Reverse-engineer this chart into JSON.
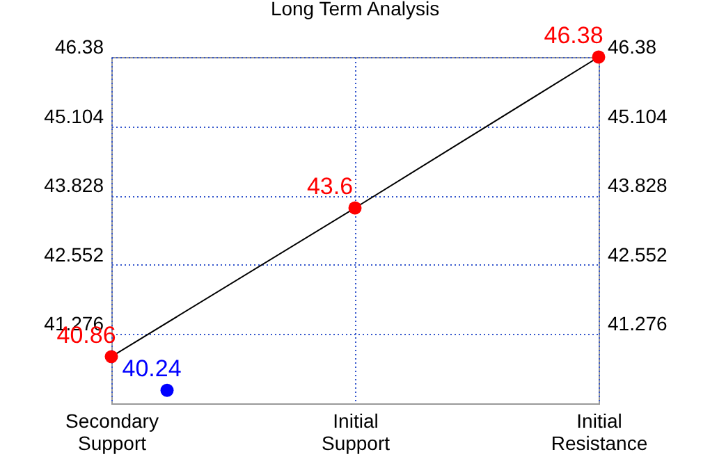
{
  "chart_data": {
    "type": "line",
    "title": "Long Term Analysis",
    "categories": [
      "Secondary Support",
      "Initial Support",
      "Initial Resistance"
    ],
    "ylim": [
      40,
      46.38
    ],
    "yticks": [
      41.276,
      42.552,
      43.828,
      45.104,
      46.38
    ],
    "y2lim": [
      40,
      46.38
    ],
    "y2ticks": [
      41.276,
      42.552,
      43.828,
      45.104,
      46.38
    ],
    "grid": true,
    "series": [
      {
        "type": "line",
        "color": "#000000",
        "values": [
          40.86,
          43.6,
          46.38
        ],
        "marker": "none",
        "line_style": "solid"
      },
      {
        "type": "scatter",
        "color": "#ff0000",
        "values": [
          40.86,
          43.6,
          46.38
        ],
        "marker": "circle",
        "value_labels": [
          "40.86",
          "43.6",
          "46.38"
        ]
      },
      {
        "type": "scatter",
        "color": "#0000ff",
        "x": [
          "Secondary Support"
        ],
        "values": [
          40.24
        ],
        "marker": "circle",
        "value_labels": [
          "40.24"
        ]
      }
    ]
  }
}
